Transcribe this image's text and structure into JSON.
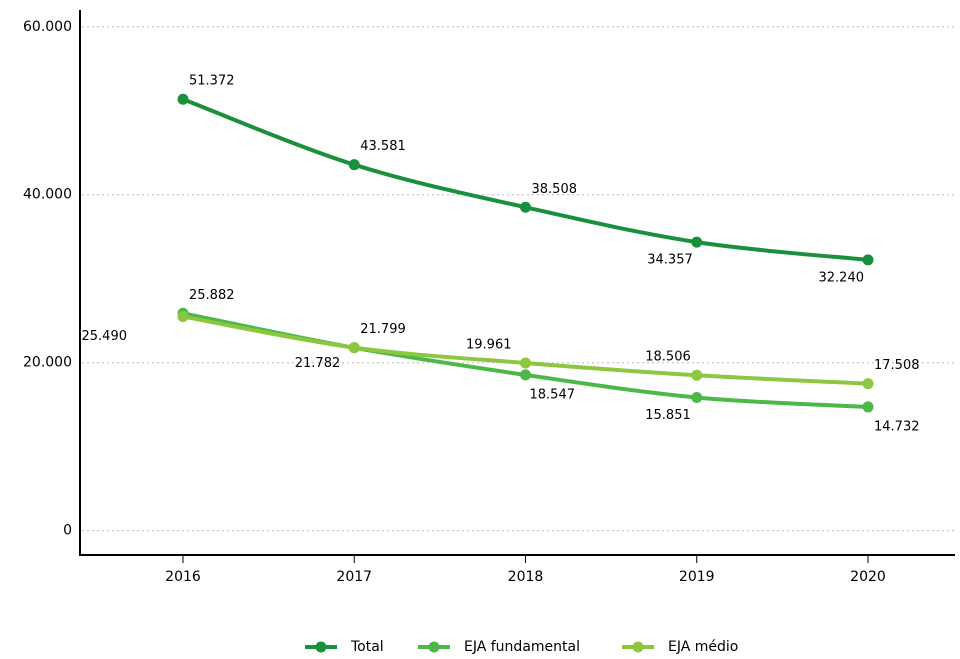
{
  "chart_data": {
    "type": "line",
    "categories": [
      "2016",
      "2017",
      "2018",
      "2019",
      "2020"
    ],
    "series": [
      {
        "name": "Total",
        "color": "#1a8f3c",
        "values": [
          51372,
          43581,
          38508,
          34357,
          32240
        ],
        "value_labels": [
          "51.372",
          "43.581",
          "38.508",
          "34.357",
          "32.240"
        ]
      },
      {
        "name": "EJA fundamental",
        "color": "#4cb848",
        "values": [
          25882,
          21782,
          18547,
          15851,
          14732
        ],
        "value_labels": [
          "25.882",
          "21.782",
          "18.547",
          "15.851",
          "14.732"
        ]
      },
      {
        "name": "EJA médio",
        "color": "#8dc63f",
        "values": [
          25490,
          21799,
          19961,
          18506,
          17508
        ],
        "value_labels": [
          "25.490",
          "21.799",
          "19.961",
          "18.506",
          "17.508"
        ]
      }
    ],
    "ylim": [
      -2900,
      62000
    ],
    "yticks": [
      0,
      {
        "value": 20000,
        "label": "20.000"
      },
      {
        "value": 40000,
        "label": "40.000"
      },
      {
        "value": 60000,
        "label": "60.000"
      }
    ],
    "grid": true,
    "legend": "bottom"
  }
}
